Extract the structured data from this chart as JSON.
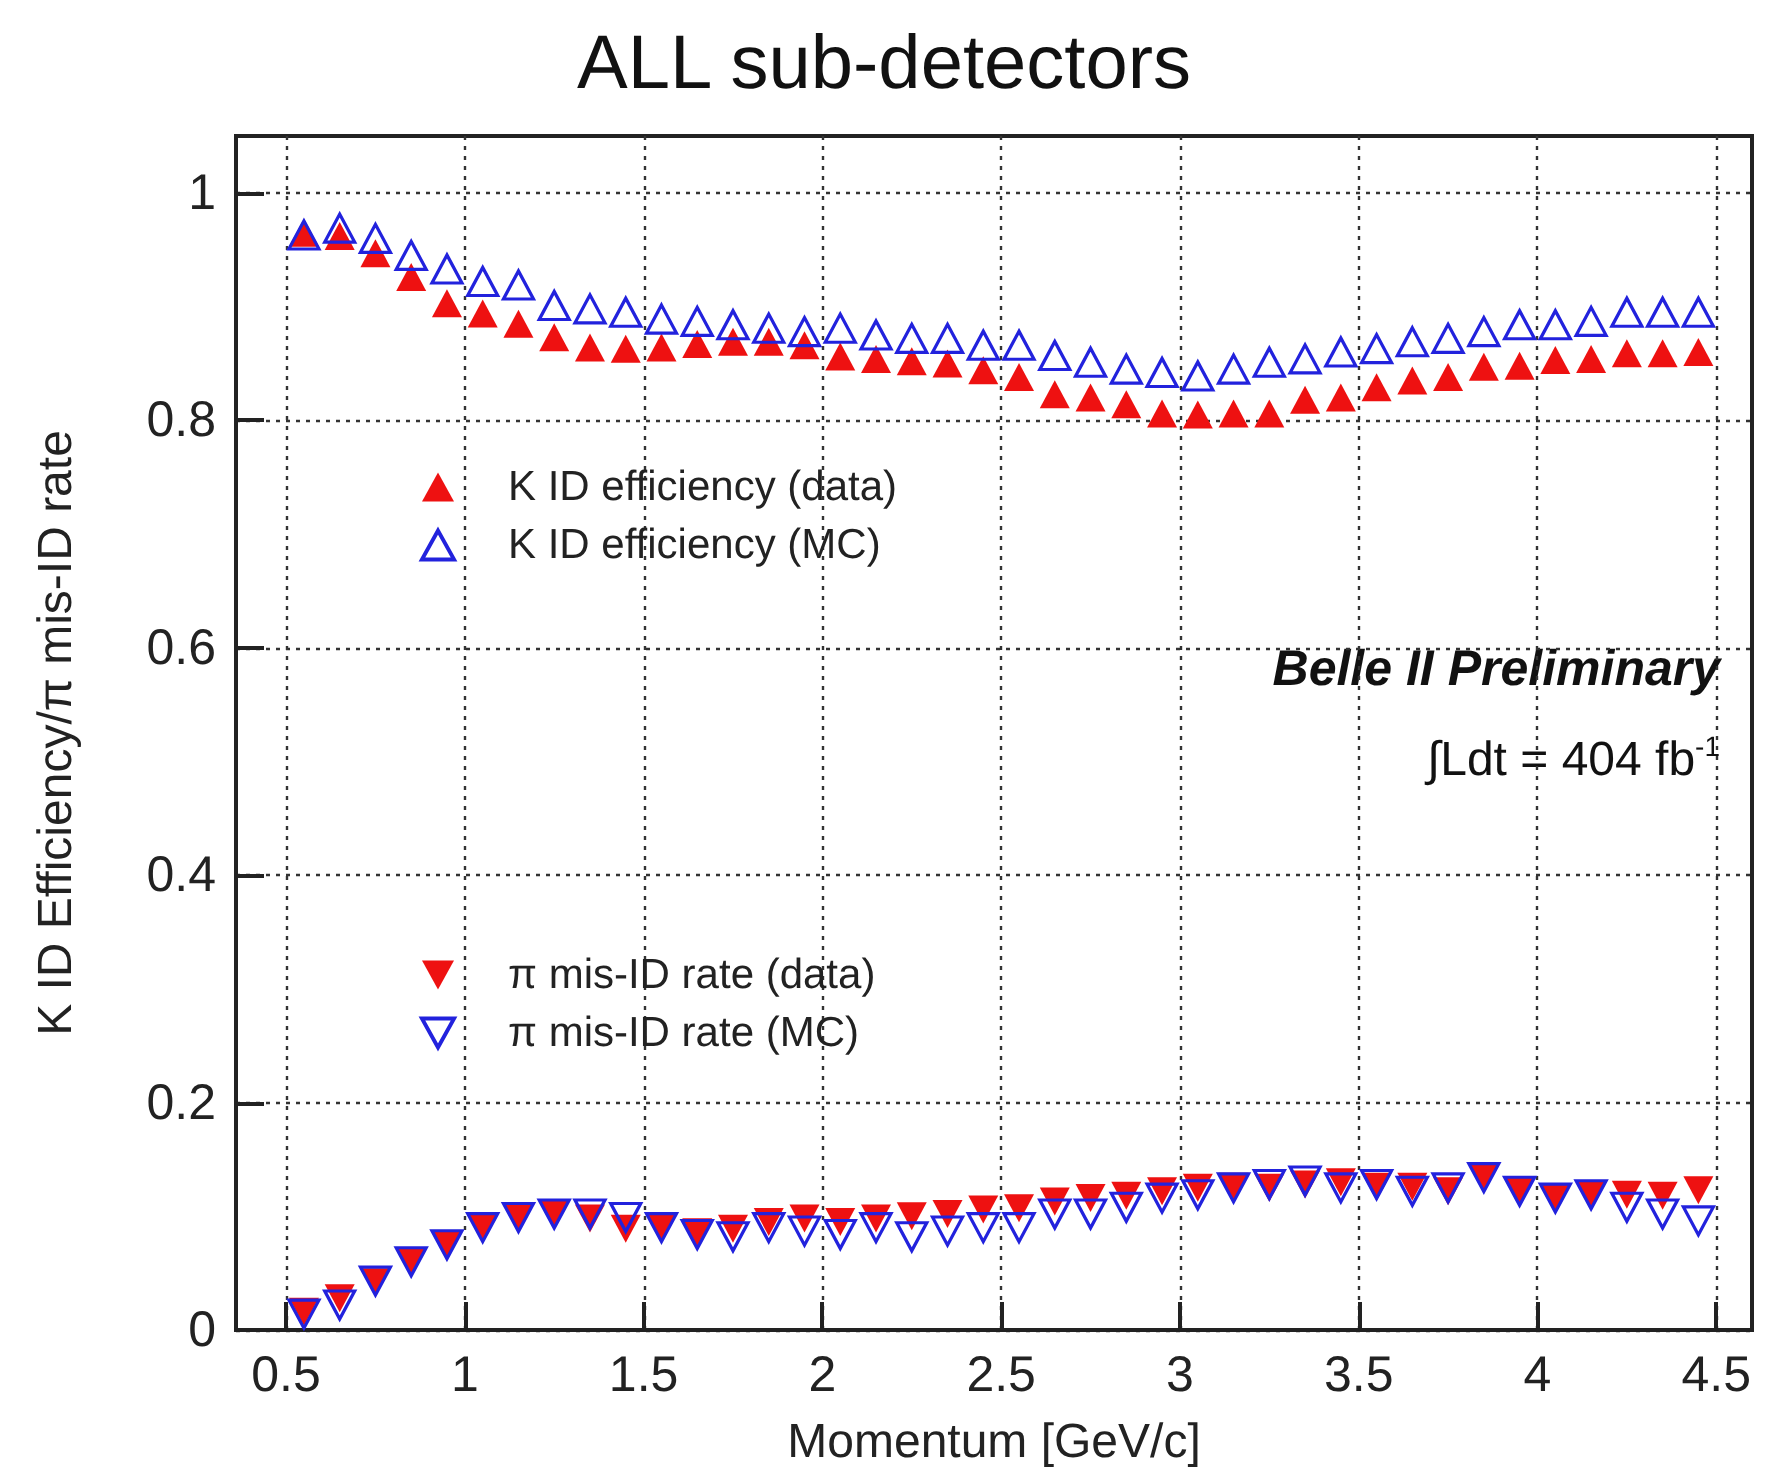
{
  "chart_data": {
    "type": "scatter",
    "title": "ALL sub-detectors",
    "xlabel": "Momentum [GeV/c]",
    "ylabel": "K ID Efficiency/π mis-ID rate",
    "annotations": [
      "Belle II Preliminary",
      "∫Ldt = 404 fb$^{-1}$"
    ],
    "x": [
      0.55,
      0.65,
      0.75,
      0.85,
      0.95,
      1.05,
      1.15,
      1.25,
      1.35,
      1.45,
      1.55,
      1.65,
      1.75,
      1.85,
      1.95,
      2.05,
      2.15,
      2.25,
      2.35,
      2.45,
      2.55,
      2.65,
      2.75,
      2.85,
      2.95,
      3.05,
      3.15,
      3.25,
      3.35,
      3.45,
      3.55,
      3.65,
      3.75,
      3.85,
      3.95,
      4.05,
      4.15,
      4.25,
      4.35,
      4.45
    ],
    "series": [
      {
        "name": "K ID efficiency (data)",
        "color": "#ee1111",
        "marker": "triangle",
        "values": [
          0.965,
          0.962,
          0.947,
          0.926,
          0.903,
          0.894,
          0.885,
          0.873,
          0.864,
          0.863,
          0.864,
          0.867,
          0.869,
          0.869,
          0.866,
          0.856,
          0.854,
          0.852,
          0.85,
          0.844,
          0.838,
          0.823,
          0.82,
          0.814,
          0.806,
          0.805,
          0.806,
          0.806,
          0.818,
          0.82,
          0.829,
          0.835,
          0.838,
          0.847,
          0.848,
          0.853,
          0.854,
          0.859,
          0.859,
          0.86
        ]
      },
      {
        "name": "K ID efficiency (MC)",
        "color": "#2222dd",
        "marker": "triangle-open",
        "values": [
          0.963,
          0.969,
          0.96,
          0.945,
          0.933,
          0.922,
          0.919,
          0.901,
          0.898,
          0.895,
          0.889,
          0.887,
          0.884,
          0.881,
          0.878,
          0.881,
          0.875,
          0.872,
          0.872,
          0.866,
          0.866,
          0.857,
          0.851,
          0.845,
          0.842,
          0.839,
          0.845,
          0.851,
          0.854,
          0.86,
          0.863,
          0.869,
          0.872,
          0.878,
          0.884,
          0.884,
          0.887,
          0.895,
          0.895,
          0.895
        ]
      },
      {
        "name": "π mis-ID rate (data)",
        "color": "#ee1111",
        "marker": "triangle-down",
        "values": [
          0.016,
          0.028,
          0.042,
          0.06,
          0.075,
          0.089,
          0.098,
          0.102,
          0.098,
          0.089,
          0.089,
          0.086,
          0.089,
          0.095,
          0.098,
          0.095,
          0.098,
          0.1,
          0.102,
          0.106,
          0.107,
          0.113,
          0.116,
          0.118,
          0.122,
          0.125,
          0.126,
          0.125,
          0.128,
          0.13,
          0.126,
          0.126,
          0.122,
          0.133,
          0.122,
          0.116,
          0.119,
          0.119,
          0.118,
          0.123
        ]
      },
      {
        "name": "π mis-ID rate (MC)",
        "color": "#2222dd",
        "marker": "triangle-down-open",
        "values": [
          0.014,
          0.022,
          0.043,
          0.06,
          0.075,
          0.09,
          0.099,
          0.102,
          0.102,
          0.099,
          0.09,
          0.084,
          0.082,
          0.09,
          0.087,
          0.084,
          0.09,
          0.082,
          0.087,
          0.09,
          0.09,
          0.102,
          0.102,
          0.108,
          0.116,
          0.119,
          0.125,
          0.128,
          0.131,
          0.125,
          0.128,
          0.122,
          0.125,
          0.134,
          0.122,
          0.116,
          0.119,
          0.108,
          0.102,
          0.096
        ]
      }
    ],
    "xlim": [
      0.36,
      4.6
    ],
    "xticks": [
      0.5,
      1,
      1.5,
      2,
      2.5,
      3,
      3.5,
      4,
      4.5
    ],
    "ylim": [
      0,
      1.05
    ],
    "yticks": [
      0,
      0.2,
      0.4,
      0.6,
      0.8,
      1
    ],
    "grid": true,
    "legend": "left"
  }
}
